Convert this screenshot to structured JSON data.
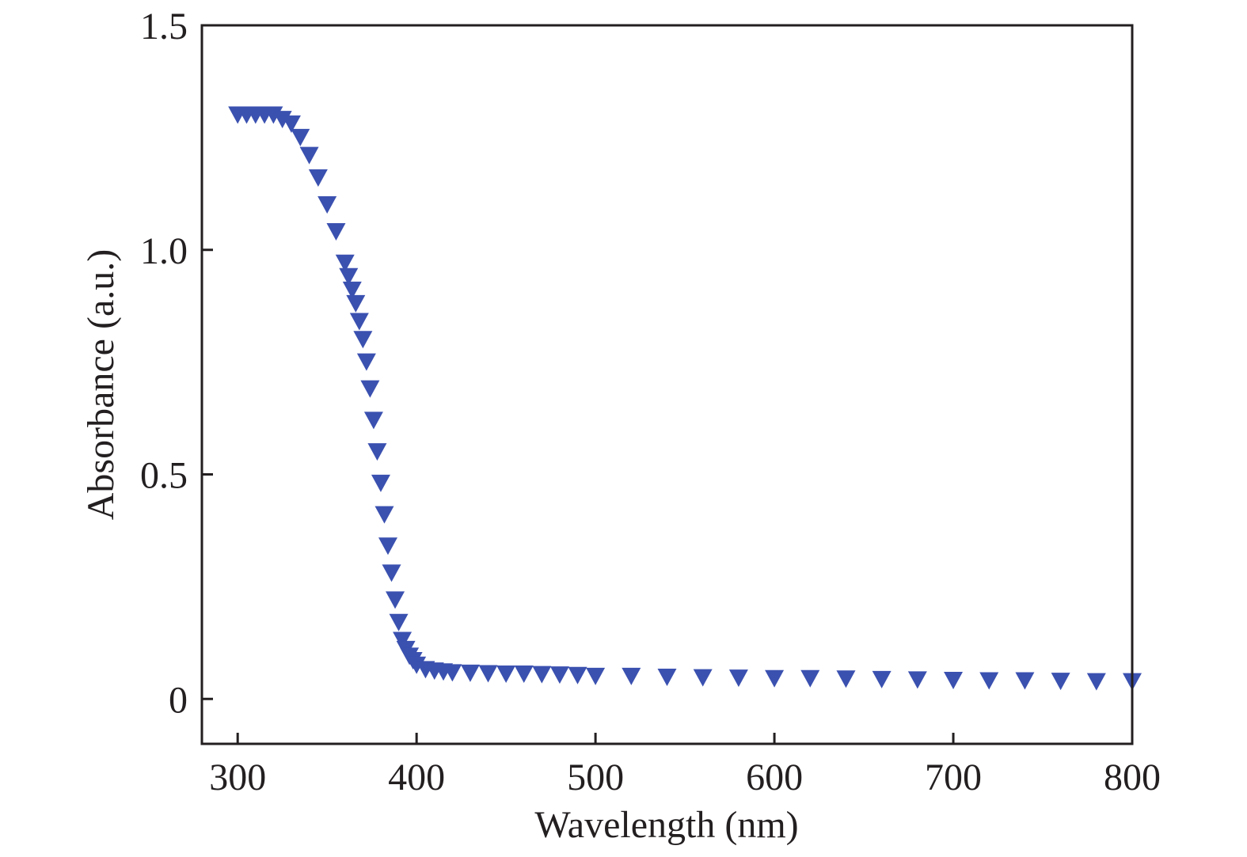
{
  "chart_data": {
    "type": "scatter",
    "title": "",
    "xlabel": "Wavelength (nm)",
    "ylabel": "Absorbance (a.u.)",
    "xlim": [
      280,
      800
    ],
    "ylim": [
      -0.1,
      1.5
    ],
    "x_ticks": [
      300,
      400,
      500,
      600,
      700,
      800
    ],
    "x_tick_labels": [
      "300",
      "400",
      "500",
      "600",
      "700",
      "800"
    ],
    "y_ticks": [
      0,
      0.5,
      1.0,
      1.5
    ],
    "y_tick_labels": [
      "0",
      "0.5",
      "1.0",
      "1.5"
    ],
    "grid": false,
    "legend": "none",
    "marker": "triangle-down",
    "color": "#3b51b0",
    "series": [
      {
        "x": [
          300,
          305,
          310,
          315,
          320,
          325,
          330,
          335,
          340,
          345,
          350,
          355,
          360,
          362,
          364,
          366,
          368,
          370,
          372,
          374,
          376,
          378,
          380,
          382,
          384,
          386,
          388,
          390,
          392,
          394,
          396,
          398,
          400,
          405,
          410,
          415,
          420,
          430,
          440,
          450,
          460,
          470,
          480,
          490,
          500,
          520,
          540,
          560,
          580,
          600,
          620,
          640,
          660,
          680,
          700,
          720,
          740,
          760,
          780,
          800
        ],
        "y": [
          1.3,
          1.3,
          1.3,
          1.3,
          1.3,
          1.29,
          1.28,
          1.25,
          1.21,
          1.16,
          1.1,
          1.04,
          0.97,
          0.94,
          0.91,
          0.88,
          0.84,
          0.8,
          0.75,
          0.69,
          0.62,
          0.55,
          0.48,
          0.41,
          0.34,
          0.28,
          0.22,
          0.17,
          0.13,
          0.11,
          0.095,
          0.085,
          0.075,
          0.065,
          0.062,
          0.06,
          0.058,
          0.057,
          0.056,
          0.055,
          0.055,
          0.054,
          0.053,
          0.052,
          0.05,
          0.05,
          0.048,
          0.047,
          0.046,
          0.045,
          0.045,
          0.044,
          0.043,
          0.042,
          0.041,
          0.04,
          0.04,
          0.039,
          0.038,
          0.038
        ]
      }
    ]
  }
}
